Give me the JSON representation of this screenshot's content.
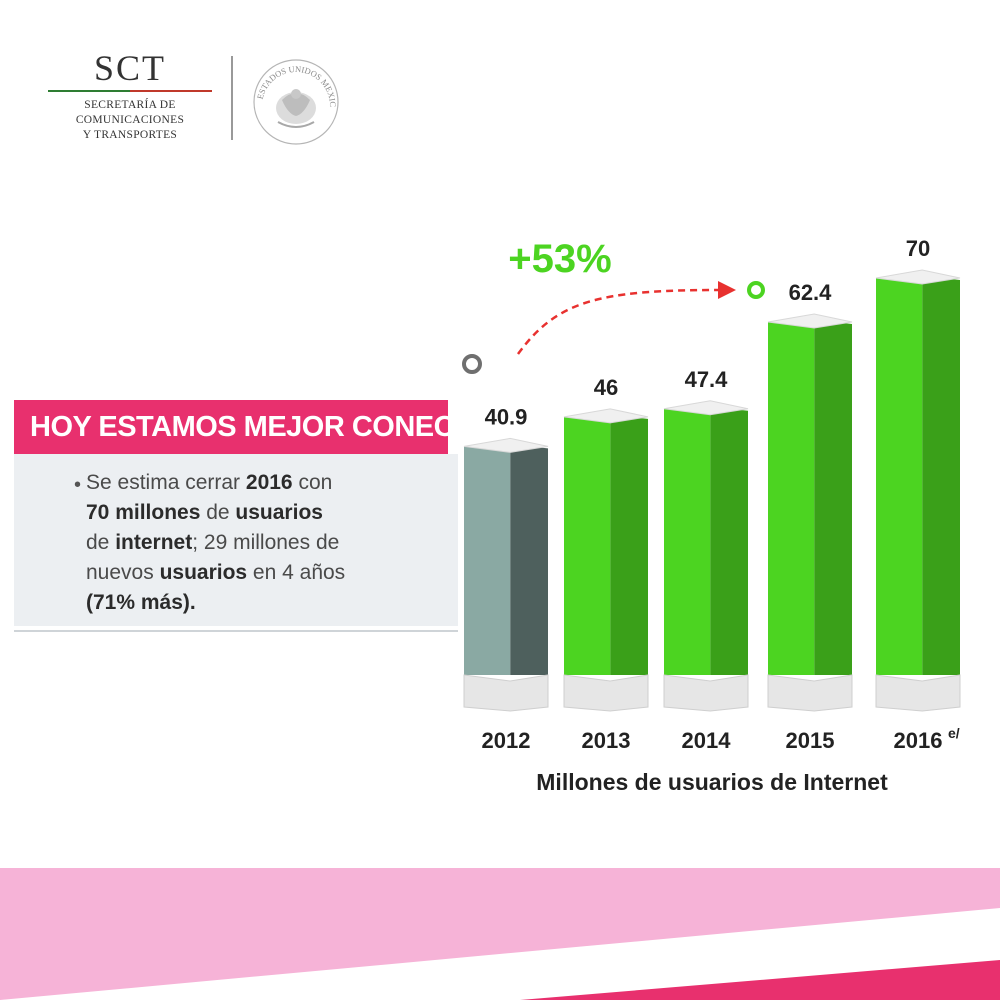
{
  "logo": {
    "acronym": "SCT",
    "line1": "SECRETARÍA DE",
    "line2": "COMUNICACIONES",
    "line3": "Y TRANSPORTES",
    "seal_text": "ESTADOS UNIDOS MEXICANOS"
  },
  "headline": "HOY ESTAMOS MEJOR CONECTADOS",
  "note": {
    "bullet": "•",
    "p1": "Se estima cerrar ",
    "b1": "2016",
    "p2": " con",
    "b2": "70 millones",
    "p3": " de ",
    "b3": "usuarios",
    "p4": "de ",
    "b4": "internet",
    "p5": "; 29 millones de",
    "p6": "nuevos ",
    "b5": "usuarios",
    "p7": " en 4 años",
    "b6": "(71% más)."
  },
  "colors": {
    "accent_pink": "#e8306e",
    "bar_green": "#4cd421",
    "bar_grey": "#6f8a86",
    "arrow_red": "#e8312f"
  },
  "chart_data": {
    "type": "bar",
    "categories": [
      "2012",
      "2013",
      "2014",
      "2015",
      "2016"
    ],
    "category_suffix": [
      "",
      "",
      "",
      "",
      "e/"
    ],
    "values": [
      40.9,
      46,
      47.4,
      62.4,
      70
    ],
    "value_labels": [
      "40.9",
      "46",
      "47.4",
      "62.4",
      "70"
    ],
    "xlabel": "Millones de usuarios de Internet",
    "ylabel": "",
    "ylim": [
      0,
      70
    ],
    "grid": false,
    "annotation": {
      "text": "+53%",
      "from": "2012",
      "to": "2015"
    }
  }
}
